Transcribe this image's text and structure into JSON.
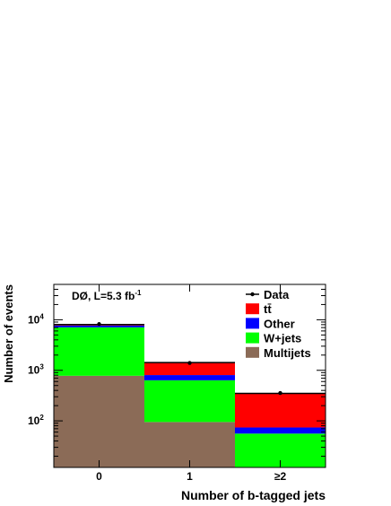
{
  "chart_data": {
    "type": "bar",
    "stacked": true,
    "yscale": "log",
    "ylim": [
      12,
      50000
    ],
    "categories": [
      "0",
      "1",
      "≥2"
    ],
    "xlabel": "Number of b-tagged jets",
    "ylabel": "Number of events",
    "annotation": "DØ, L=5.3 fb",
    "annotation_sup": "-1",
    "yticks": [
      {
        "value": 100,
        "base": "10",
        "exp": "2"
      },
      {
        "value": 1000,
        "base": "10",
        "exp": "3"
      },
      {
        "value": 10000,
        "base": "10",
        "exp": "4"
      }
    ],
    "series": [
      {
        "name": "Multijets",
        "color": "#8b6b57",
        "values": [
          780,
          95,
          12
        ]
      },
      {
        "name": "W+jets",
        "color": "#00ff00",
        "values": [
          6300,
          540,
          44
        ]
      },
      {
        "name": "Other",
        "color": "#0000ff",
        "values": [
          600,
          170,
          18
        ]
      },
      {
        "name": "tt̄",
        "color": "#ff0000",
        "values": [
          350,
          620,
          276
        ]
      }
    ],
    "data_points": {
      "name": "Data",
      "values": [
        8200,
        1400,
        355
      ]
    },
    "legend": {
      "position": "top-right",
      "entries": [
        {
          "label": "Data",
          "kind": "marker"
        },
        {
          "label": "tt̄",
          "color": "#ff0000"
        },
        {
          "label": "Other",
          "color": "#0000ff"
        },
        {
          "label": "W+jets",
          "color": "#00ff00"
        },
        {
          "label": "Multijets",
          "color": "#8b6b57"
        }
      ]
    }
  }
}
